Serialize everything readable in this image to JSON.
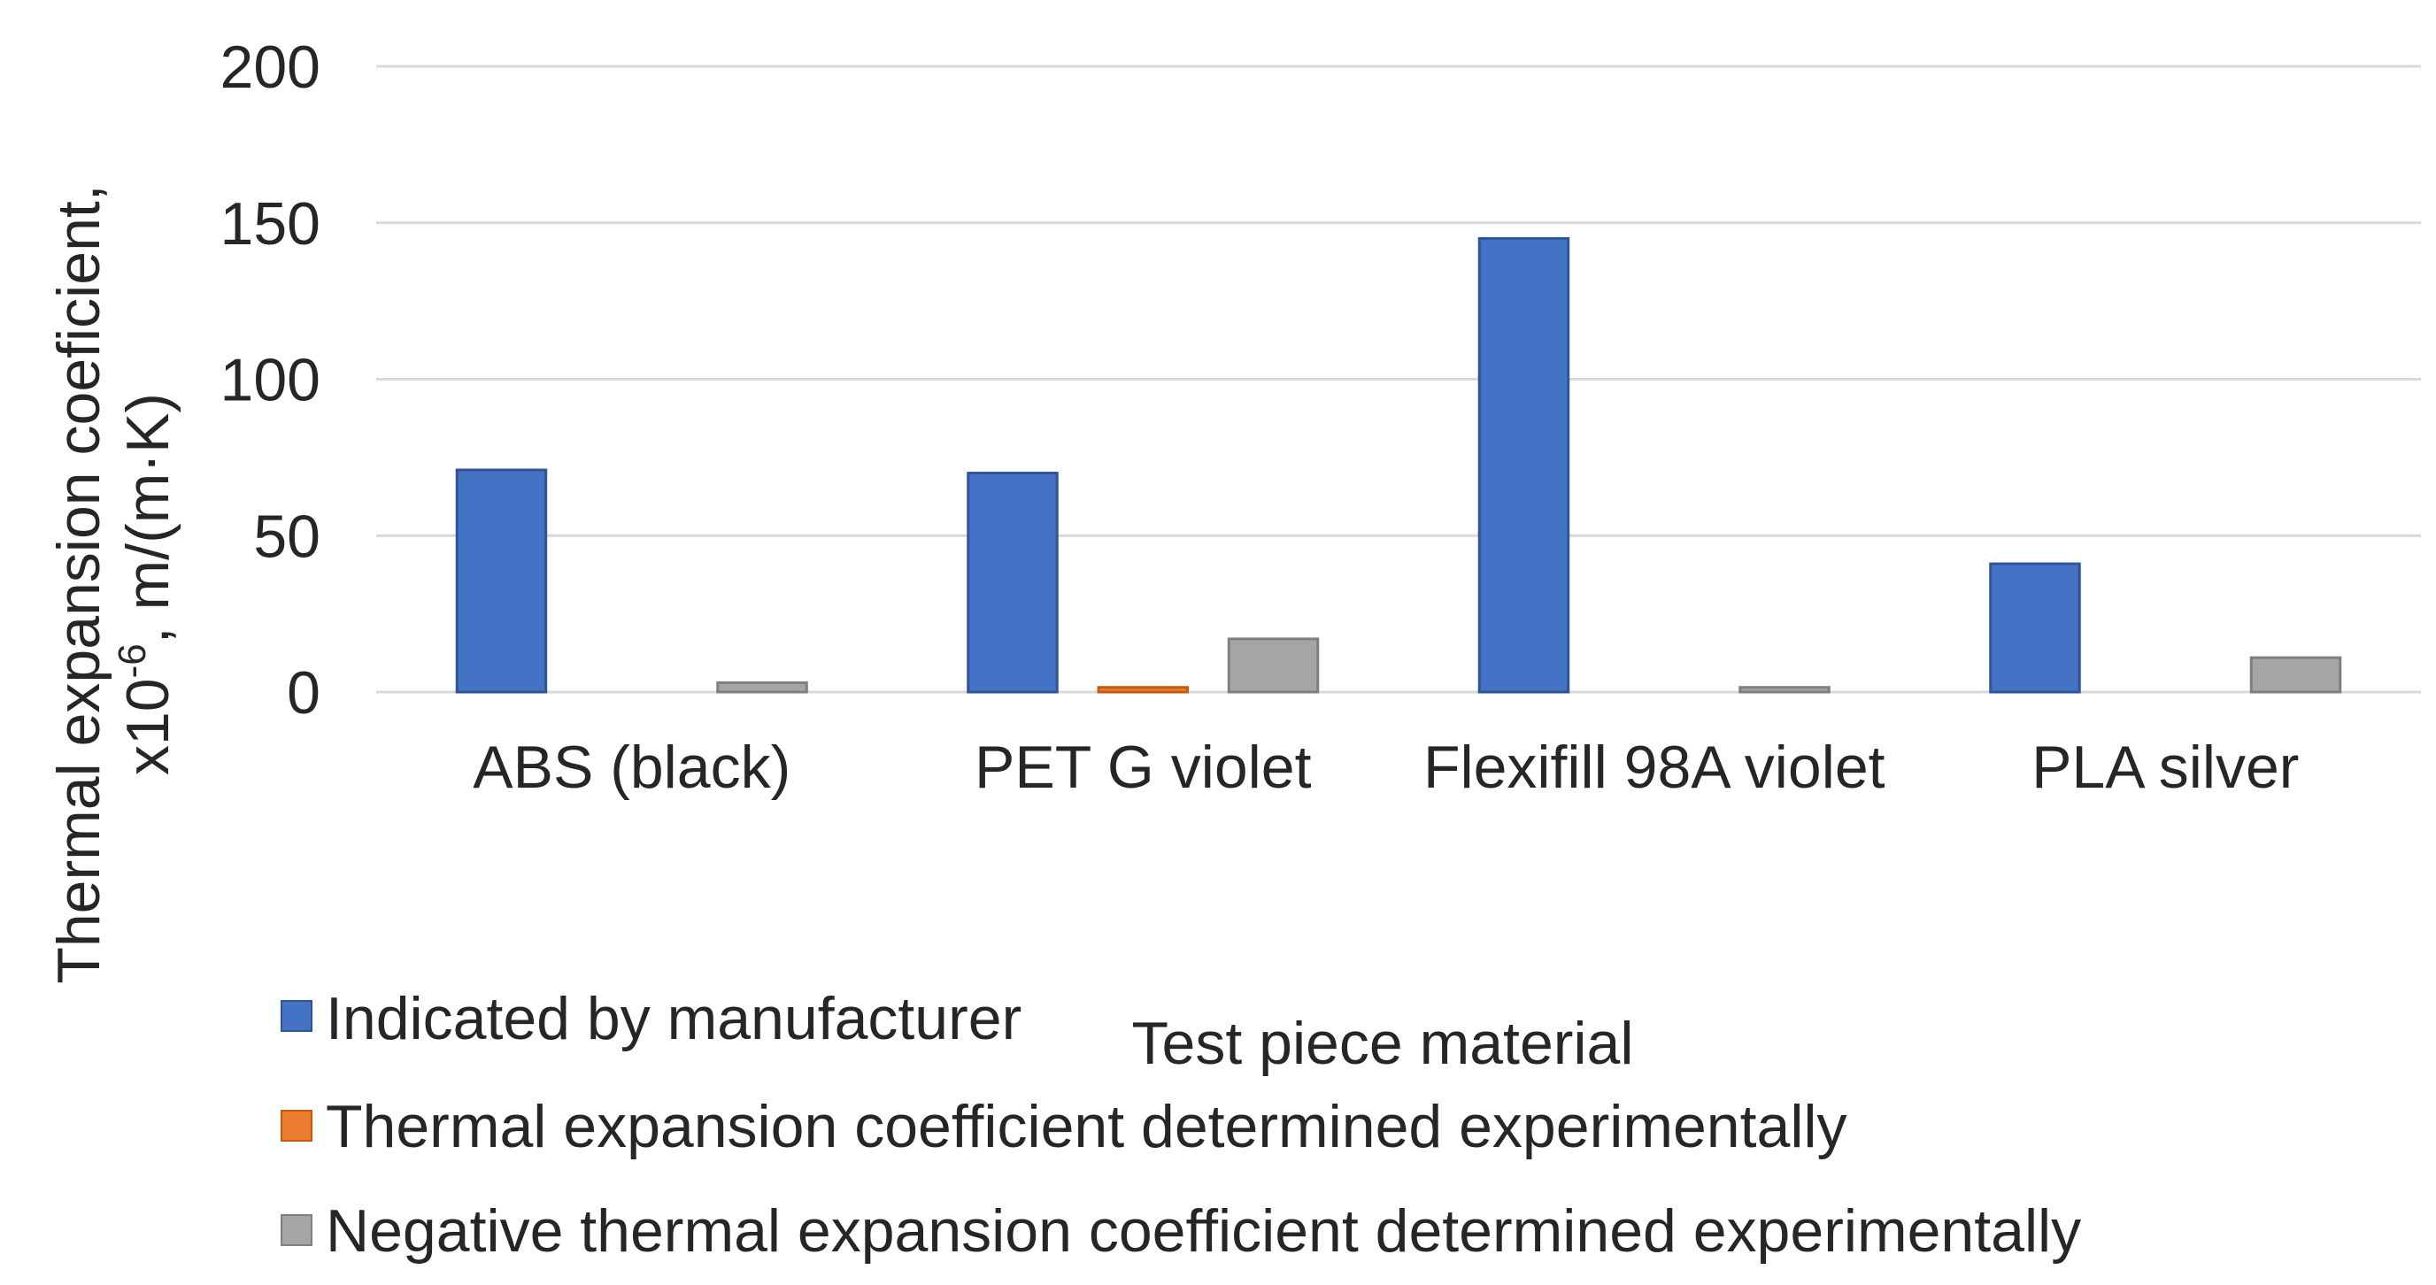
{
  "chart_data": {
    "type": "bar",
    "title": "",
    "xlabel": "Test piece material",
    "ylabel": "Thermal expansion coeficient, x10-6, m/(m·K)",
    "ylabel_line1": "Thermal expansion coeficient,",
    "ylabel_line2_prefix": "x10",
    "ylabel_line2_exponent": "-6",
    "ylabel_line2_suffix": ", m/(m·K)",
    "ylim": [
      0,
      200
    ],
    "yticks": [
      0,
      50,
      100,
      150,
      200
    ],
    "ytick_labels": [
      "0",
      "50",
      "100",
      "150",
      "200"
    ],
    "grid": true,
    "categories": [
      "ABS (black)",
      "PET G violet",
      "Flexifill 98A violet",
      "PLA silver"
    ],
    "series": [
      {
        "name": "Indicated by manufacturer",
        "color": "#4472C4",
        "values": [
          71,
          70,
          145,
          41
        ]
      },
      {
        "name": "Thermal expansion coefficient determined experimentally",
        "color": "#ED7D31",
        "values": [
          0,
          1.5,
          0,
          0
        ]
      },
      {
        "name": "Negative thermal expansion coefficient determined experimentally",
        "color": "#A5A5A5",
        "values": [
          3,
          17,
          1.5,
          11
        ]
      }
    ],
    "legend_position": "bottom-left"
  },
  "colors": {
    "grid": "#D9D9D9",
    "text": "#262626"
  }
}
